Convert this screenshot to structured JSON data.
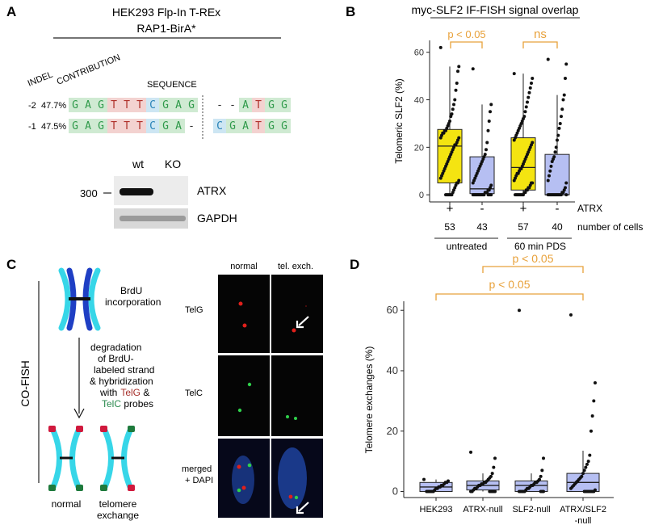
{
  "colors": {
    "yellow_box": "#f4e411",
    "blue_box": "#b6bff2",
    "sig": "#e8a13a",
    "telG": "#a6302b",
    "telC": "#2b8a4f",
    "chrom_light": "#37d6e8",
    "chrom_dark": "#1f3fc4",
    "seq_green": "#cfead2",
    "seq_red": "#f3d2d0",
    "seq_blue": "#cde6f3",
    "seq_grey": "#e3e3e3"
  },
  "panelA": {
    "label": "A",
    "title_line1": "HEK293 Flp-In T-REx",
    "title_line2": "RAP1-BirA*",
    "col_indel": "INDEL",
    "col_contribution": "CONTRIBUTION",
    "col_sequence": "SEQUENCE",
    "rows": [
      {
        "indel": "-2",
        "contribution": "47.7%",
        "bases": [
          "G",
          "A",
          "G",
          "T",
          "T",
          "T",
          "C",
          "G",
          "A",
          "G"
        ],
        "tail": [
          "-",
          "-",
          "A",
          "T",
          "G",
          "G"
        ]
      },
      {
        "indel": "-1",
        "contribution": "47.5%",
        "bases": [
          "G",
          "A",
          "G",
          "T",
          "T",
          "T",
          "C",
          "G",
          "A",
          "-"
        ],
        "tail": [
          "C",
          "G",
          "A",
          "T",
          "G",
          "G"
        ]
      }
    ],
    "blot": {
      "col_wt": "wt",
      "col_ko": "KO",
      "marker": "300",
      "band1": "ATRX",
      "band2": "GAPDH"
    }
  },
  "panelB": {
    "label": "B",
    "title": "myc-SLF2 IF-FISH signal overlap",
    "sig1": "p < 0.05",
    "sig2": "ns",
    "row_atrx_label": "ATRX",
    "row_cells_label": "number of cells",
    "group1": "untreated",
    "group2": "60 min PDS"
  },
  "panelC": {
    "label": "C",
    "side_label": "CO-FISH",
    "brdu_line1": "BrdU",
    "brdu_line2": "incorporation",
    "step_lines": [
      "degradation",
      "of BrdU-",
      "labeled strand",
      "& hybridization",
      "with"
    ],
    "step_telg": "TelG",
    "step_amp": " &",
    "step_telc": "TelC",
    "step_probes": " probes",
    "label_normal": "normal",
    "label_exchange1": "telomere",
    "label_exchange2": "exchange",
    "micro_col1": "normal",
    "micro_col2": "tel. exch.",
    "micro_row1": "TelG",
    "micro_row2": "TelC",
    "micro_row3a": "merged",
    "micro_row3b": "+ DAPI"
  },
  "panelD": {
    "label": "D",
    "sig_top": "p < 0.05",
    "sig_bottom": "p < 0.05"
  },
  "chart_data": [
    {
      "type": "box",
      "title": "myc-SLF2 IF-FISH signal overlap",
      "ylabel": "Telomeric SLF2 (%)",
      "ylim": [
        -3,
        65
      ],
      "yticks": [
        0,
        20,
        40,
        60
      ],
      "categories": [
        "untreated ATRX +",
        "untreated ATRX -",
        "60 min PDS ATRX +",
        "60 min PDS ATRX -"
      ],
      "atrx": [
        "+",
        "-",
        "+",
        "-"
      ],
      "cells": [
        53,
        43,
        57,
        40
      ],
      "box": [
        {
          "min": 0,
          "q1": 5,
          "median": 20.5,
          "q3": 27.5,
          "max": 54
        },
        {
          "min": 0,
          "q1": 0.5,
          "median": 2.5,
          "q3": 16,
          "max": 38
        },
        {
          "min": 0,
          "q1": 2,
          "median": 11.5,
          "q3": 24,
          "max": 51
        },
        {
          "min": 0,
          "q1": 0,
          "median": 0,
          "q3": 17,
          "max": 42
        }
      ],
      "points": [
        [
          62,
          54,
          52,
          47,
          44,
          40,
          38,
          36,
          34,
          33,
          31,
          30,
          29,
          28,
          27,
          27,
          26,
          26,
          25,
          24,
          24,
          23,
          22,
          21,
          21,
          20,
          19,
          18,
          17,
          16,
          15,
          14,
          13,
          12,
          11,
          10,
          9,
          8,
          7,
          6,
          5,
          5,
          4,
          3,
          2,
          1,
          0,
          0,
          0,
          0,
          0,
          0,
          0
        ],
        [
          53,
          38,
          35,
          31,
          27,
          22,
          19,
          17,
          16,
          15,
          14,
          13,
          12,
          11,
          10,
          9,
          8,
          7,
          6,
          5,
          4,
          3,
          2,
          2,
          1,
          1,
          1,
          0,
          0,
          0,
          0,
          0,
          0,
          0,
          0,
          0,
          0,
          0,
          0,
          0,
          0,
          0,
          0
        ],
        [
          51,
          49,
          47,
          45,
          43,
          41,
          39,
          37,
          35,
          33,
          32,
          31,
          30,
          29,
          28,
          27,
          26,
          25,
          24,
          23,
          22,
          21,
          20,
          19,
          18,
          17,
          16,
          15,
          14,
          13,
          12,
          11,
          11,
          10,
          9,
          9,
          8,
          7,
          6,
          5,
          5,
          4,
          3,
          3,
          2,
          2,
          1,
          1,
          0,
          0,
          0,
          0,
          0,
          0,
          0,
          0,
          0
        ],
        [
          57,
          55,
          49,
          42,
          40,
          36,
          33,
          30,
          28,
          25,
          23,
          20,
          18,
          16,
          15,
          14,
          12,
          10,
          8,
          6,
          5,
          3,
          2,
          1,
          1,
          0,
          0,
          0,
          0,
          0,
          0,
          0,
          0,
          0,
          0,
          0,
          0,
          0,
          0,
          0
        ]
      ]
    },
    {
      "type": "box",
      "ylabel": "Telomere exchanges (%)",
      "ylim": [
        -2,
        63
      ],
      "yticks": [
        0,
        20,
        40,
        60
      ],
      "categories": [
        "HEK293",
        "ATRX-null",
        "SLF2-null",
        "ATRX/SLF2\n-null"
      ],
      "box": [
        {
          "min": 0,
          "q1": 0,
          "median": 1.5,
          "q3": 3,
          "max": 4
        },
        {
          "min": 0,
          "q1": 0.5,
          "median": 2,
          "q3": 3.5,
          "max": 6
        },
        {
          "min": 0,
          "q1": 0,
          "median": 2,
          "q3": 3.5,
          "max": 6
        },
        {
          "min": 0,
          "q1": 0,
          "median": 3,
          "q3": 6,
          "max": 13.5
        }
      ],
      "points": [
        [
          4,
          3.5,
          3,
          3,
          2.5,
          2,
          2,
          1.5,
          1.5,
          1,
          1,
          0.5,
          0,
          0,
          0,
          0,
          0,
          0
        ],
        [
          13,
          11,
          8,
          6,
          5,
          4.5,
          4,
          3.5,
          3,
          3,
          2.5,
          2.5,
          2,
          2,
          1.5,
          1,
          1,
          0.5,
          0,
          0,
          0,
          0,
          0,
          0,
          0
        ],
        [
          60,
          11,
          7,
          5,
          4,
          3.5,
          3,
          3,
          2.5,
          2,
          2,
          1.5,
          1,
          1,
          0.5,
          0,
          0,
          0,
          0,
          0,
          0,
          0,
          0
        ],
        [
          58.5,
          36,
          30,
          25,
          20,
          12,
          10,
          9,
          8,
          7,
          6,
          5,
          4.5,
          4,
          3.5,
          3,
          2.5,
          2,
          1.5,
          1,
          0.5,
          0,
          0,
          0,
          0,
          0,
          0,
          0,
          0
        ]
      ]
    }
  ]
}
